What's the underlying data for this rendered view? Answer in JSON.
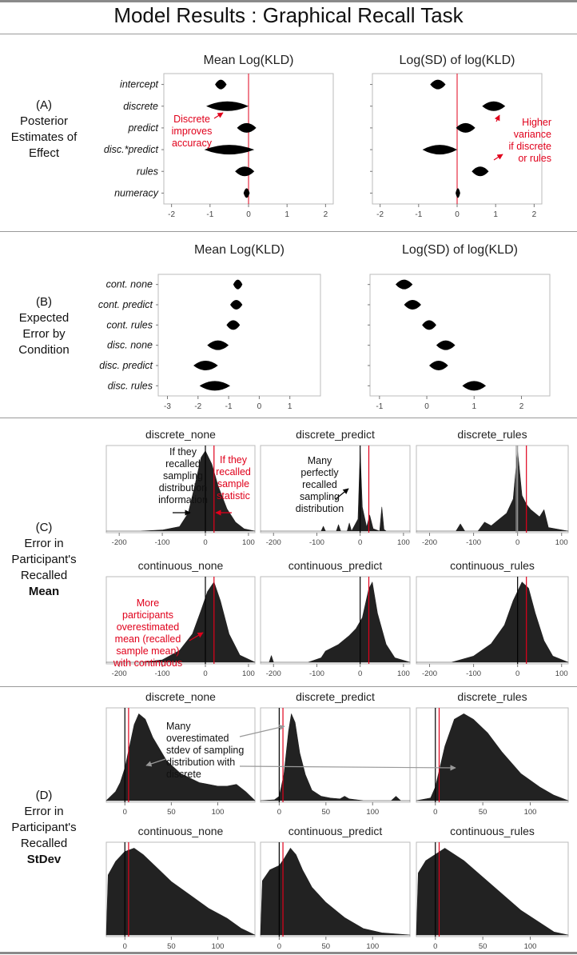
{
  "title": "Model Results : Graphical Recall Task",
  "colors": {
    "red": "#e0001b",
    "grey": "#999999",
    "fill": "#222222"
  },
  "sections": {
    "A": {
      "label_lines": [
        "(A)",
        "Posterior",
        "Estimates of",
        "Effect"
      ]
    },
    "B": {
      "label_lines": [
        "(B)",
        "Expected",
        "Error by",
        "Condition"
      ]
    },
    "C": {
      "label_lines": [
        "(C)",
        "Error in",
        "Participant's",
        "Recalled",
        "Mean"
      ]
    },
    "D": {
      "label_lines": [
        "(D)",
        "Error in",
        "Participant's",
        "Recalled",
        "StDev"
      ]
    }
  },
  "annotations": {
    "a_discrete": [
      "Discrete",
      "improves",
      "accuracy"
    ],
    "a_variance": [
      "Higher",
      "variance",
      "if discrete",
      "or rules"
    ],
    "c_sampling": [
      "If they",
      "recalled",
      "sampling",
      "distribution",
      "information"
    ],
    "c_sample": [
      "If they",
      "recalled",
      "sample",
      "statistic"
    ],
    "c_perfect": [
      "Many",
      "perfectly",
      "recalled",
      "sampling",
      "distribution"
    ],
    "c_more": [
      "More",
      "participants",
      "overestimated",
      "mean (recalled",
      "sample mean)",
      "with continuous"
    ],
    "d_many": [
      "Many",
      "overestimated",
      "stdev of sampling",
      "distribution with",
      "discrete"
    ]
  },
  "chart_data": [
    {
      "id": "A1",
      "type": "violin",
      "title": "Mean Log(KLD)",
      "categories": [
        "intercept",
        "discrete",
        "predict",
        "disc.*predict",
        "rules",
        "numeracy"
      ],
      "values": [
        -0.72,
        -0.55,
        -0.05,
        -0.5,
        -0.1,
        -0.05
      ],
      "spread": [
        0.15,
        0.55,
        0.25,
        0.65,
        0.25,
        0.08
      ],
      "xlim": [
        -2.2,
        2.2
      ],
      "xticks": [
        -2,
        -1,
        0,
        1,
        2
      ],
      "refline": 0
    },
    {
      "id": "A2",
      "type": "violin",
      "title": "Log(SD) of log(KLD)",
      "categories": [
        "intercept",
        "discrete",
        "predict",
        "disc.*predict",
        "rules",
        "numeracy"
      ],
      "values": [
        -0.5,
        0.95,
        0.22,
        -0.45,
        0.6,
        0.02
      ],
      "spread": [
        0.2,
        0.3,
        0.25,
        0.45,
        0.22,
        0.06
      ],
      "xlim": [
        -2.2,
        2.2
      ],
      "xticks": [
        -2,
        -1,
        0,
        1,
        2
      ],
      "refline": 0
    },
    {
      "id": "B1",
      "type": "violin",
      "title": "Mean Log(KLD)",
      "categories": [
        "cont. none",
        "cont. predict",
        "cont. rules",
        "disc. none",
        "disc. predict",
        "disc. rules"
      ],
      "values": [
        -0.7,
        -0.75,
        -0.85,
        -1.35,
        -1.75,
        -1.45
      ],
      "spread": [
        0.15,
        0.2,
        0.22,
        0.35,
        0.4,
        0.5
      ],
      "xlim": [
        -3.3,
        2.0
      ],
      "xticks": [
        -3,
        -2,
        -1,
        0,
        1
      ]
    },
    {
      "id": "B2",
      "type": "violin",
      "title": "Log(SD) of log(KLD)",
      "categories": [
        "cont. none",
        "cont. predict",
        "cont. rules",
        "disc. none",
        "disc. predict",
        "disc. rules"
      ],
      "values": [
        -0.48,
        -0.3,
        0.05,
        0.4,
        0.25,
        1.0
      ],
      "spread": [
        0.18,
        0.18,
        0.15,
        0.2,
        0.2,
        0.25
      ],
      "xlim": [
        -1.2,
        2.6
      ],
      "xticks": [
        -1,
        0,
        1,
        2
      ]
    },
    {
      "id": "C1",
      "type": "area",
      "title": "discrete_none",
      "xlim": [
        -230,
        115
      ],
      "xticks": [
        -200,
        -100,
        0,
        100
      ],
      "refs": [
        {
          "x": 0,
          "color": "#000000"
        },
        {
          "x": 20,
          "color": "#e0001b"
        }
      ],
      "x": [
        -230,
        -150,
        -100,
        -60,
        -40,
        -25,
        -10,
        0,
        15,
        30,
        50,
        70,
        90,
        115
      ],
      "y": [
        0,
        0,
        0.005,
        0.02,
        0.08,
        0.2,
        0.33,
        0.36,
        0.3,
        0.2,
        0.1,
        0.04,
        0.01,
        0
      ]
    },
    {
      "id": "C2",
      "type": "area",
      "title": "discrete_predict",
      "xlim": [
        -230,
        115
      ],
      "xticks": [
        -200,
        -100,
        0,
        100
      ],
      "refs": [
        {
          "x": 0,
          "color": "#000000"
        },
        {
          "x": 20,
          "color": "#e0001b"
        }
      ],
      "x": [
        -230,
        -90,
        -85,
        -80,
        -55,
        -50,
        -45,
        -30,
        -25,
        -20,
        -5,
        0,
        5,
        15,
        22,
        30,
        45,
        50,
        55,
        60,
        115
      ],
      "y": [
        0,
        0,
        0.06,
        0,
        0,
        0.08,
        0,
        0,
        0.1,
        0,
        0.15,
        1.0,
        0.3,
        0.05,
        0.2,
        0.03,
        0,
        0.3,
        0.02,
        0,
        0
      ]
    },
    {
      "id": "C3",
      "type": "area",
      "title": "discrete_rules",
      "xlim": [
        -230,
        115
      ],
      "xticks": [
        -200,
        -100,
        0,
        100
      ],
      "refs": [
        {
          "x": -3,
          "color": "#999999"
        },
        {
          "x": 0,
          "color": "#999999"
        },
        {
          "x": 20,
          "color": "#e0001b"
        }
      ],
      "x": [
        -230,
        -140,
        -130,
        -120,
        -90,
        -75,
        -60,
        -40,
        -25,
        -10,
        0,
        10,
        20,
        30,
        40,
        50,
        60,
        70,
        115
      ],
      "y": [
        0,
        0,
        0.04,
        0,
        0,
        0.05,
        0.03,
        0.07,
        0.1,
        0.18,
        0.45,
        0.2,
        0.15,
        0.12,
        0.1,
        0.08,
        0.12,
        0.02,
        0
      ]
    },
    {
      "id": "C4",
      "type": "area",
      "title": "continuous_none",
      "xlim": [
        -230,
        115
      ],
      "xticks": [
        -200,
        -100,
        0,
        100
      ],
      "refs": [
        {
          "x": 0,
          "color": "#000000"
        },
        {
          "x": 20,
          "color": "#e0001b"
        }
      ],
      "x": [
        -230,
        -150,
        -100,
        -60,
        -30,
        -10,
        5,
        20,
        35,
        55,
        80,
        115
      ],
      "y": [
        0,
        0,
        0.01,
        0.05,
        0.12,
        0.22,
        0.3,
        0.34,
        0.26,
        0.12,
        0.03,
        0
      ]
    },
    {
      "id": "C5",
      "type": "area",
      "title": "continuous_predict",
      "xlim": [
        -230,
        115
      ],
      "xticks": [
        -200,
        -100,
        0,
        100
      ],
      "refs": [
        {
          "x": 0,
          "color": "#000000"
        },
        {
          "x": 20,
          "color": "#e0001b"
        }
      ],
      "x": [
        -230,
        -210,
        -205,
        -200,
        -120,
        -90,
        -80,
        -50,
        -25,
        -10,
        5,
        20,
        28,
        40,
        60,
        80,
        115
      ],
      "y": [
        0,
        0,
        0.03,
        0,
        0,
        0.02,
        0.05,
        0.08,
        0.12,
        0.15,
        0.2,
        0.33,
        0.36,
        0.22,
        0.08,
        0.02,
        0
      ]
    },
    {
      "id": "C6",
      "type": "area",
      "title": "continuous_rules",
      "xlim": [
        -230,
        115
      ],
      "xticks": [
        -200,
        -100,
        0,
        100
      ],
      "refs": [
        {
          "x": 0,
          "color": "#000000"
        },
        {
          "x": 20,
          "color": "#e0001b"
        }
      ],
      "x": [
        -230,
        -200,
        -150,
        -100,
        -60,
        -30,
        -10,
        10,
        25,
        40,
        60,
        80,
        115
      ],
      "y": [
        0,
        0,
        0,
        0.02,
        0.06,
        0.12,
        0.2,
        0.26,
        0.24,
        0.16,
        0.07,
        0.02,
        0
      ]
    },
    {
      "id": "D1",
      "type": "area",
      "title": "discrete_none",
      "xlim": [
        -20,
        140
      ],
      "xticks": [
        0,
        50,
        100
      ],
      "refs": [
        {
          "x": 0,
          "color": "#000000"
        },
        {
          "x": 4,
          "color": "#e0001b"
        }
      ],
      "x": [
        -20,
        -10,
        -5,
        0,
        5,
        10,
        15,
        22,
        30,
        45,
        60,
        80,
        100,
        110,
        120,
        130,
        140
      ],
      "y": [
        0,
        0.05,
        0.1,
        0.18,
        0.3,
        0.42,
        0.48,
        0.45,
        0.35,
        0.22,
        0.15,
        0.1,
        0.08,
        0.08,
        0.09,
        0.05,
        0
      ]
    },
    {
      "id": "D2",
      "type": "area",
      "title": "discrete_predict",
      "xlim": [
        -20,
        140
      ],
      "xticks": [
        0,
        50,
        100
      ],
      "refs": [
        {
          "x": 0,
          "color": "#000000"
        },
        {
          "x": 4,
          "color": "#e0001b"
        }
      ],
      "x": [
        -20,
        -5,
        0,
        5,
        10,
        13,
        17,
        22,
        28,
        35,
        45,
        55,
        65,
        70,
        75,
        90,
        120,
        125,
        130,
        140
      ],
      "y": [
        0,
        0.01,
        0.05,
        0.3,
        0.8,
        1.0,
        0.9,
        0.55,
        0.3,
        0.12,
        0.05,
        0.03,
        0.02,
        0.05,
        0.02,
        0,
        0,
        0.05,
        0,
        0
      ]
    },
    {
      "id": "D3",
      "type": "area",
      "title": "discrete_rules",
      "xlim": [
        -20,
        140
      ],
      "xticks": [
        0,
        50,
        100
      ],
      "refs": [
        {
          "x": 0,
          "color": "#000000"
        },
        {
          "x": 4,
          "color": "#e0001b"
        }
      ],
      "x": [
        -20,
        -5,
        0,
        10,
        20,
        30,
        40,
        55,
        70,
        90,
        110,
        125,
        140
      ],
      "y": [
        0,
        0.01,
        0.05,
        0.2,
        0.3,
        0.32,
        0.3,
        0.25,
        0.18,
        0.1,
        0.05,
        0.02,
        0
      ]
    },
    {
      "id": "D4",
      "type": "area",
      "title": "continuous_none",
      "xlim": [
        -20,
        140
      ],
      "xticks": [
        0,
        50,
        100
      ],
      "refs": [
        {
          "x": 0,
          "color": "#000000"
        },
        {
          "x": 4,
          "color": "#e0001b"
        }
      ],
      "x": [
        -20,
        -18,
        -10,
        0,
        10,
        20,
        35,
        50,
        70,
        90,
        110,
        125,
        140
      ],
      "y": [
        0,
        0.18,
        0.22,
        0.25,
        0.26,
        0.24,
        0.2,
        0.16,
        0.12,
        0.08,
        0.05,
        0.02,
        0
      ]
    },
    {
      "id": "D5",
      "type": "area",
      "title": "continuous_predict",
      "xlim": [
        -20,
        140
      ],
      "xticks": [
        0,
        50,
        100
      ],
      "refs": [
        {
          "x": 0,
          "color": "#000000"
        },
        {
          "x": 4,
          "color": "#e0001b"
        }
      ],
      "x": [
        -20,
        -18,
        -10,
        0,
        5,
        12,
        18,
        25,
        35,
        50,
        70,
        90,
        110,
        140
      ],
      "y": [
        0,
        0.25,
        0.3,
        0.32,
        0.35,
        0.4,
        0.37,
        0.3,
        0.22,
        0.15,
        0.08,
        0.03,
        0.01,
        0
      ]
    },
    {
      "id": "D6",
      "type": "area",
      "title": "continuous_rules",
      "xlim": [
        -20,
        140
      ],
      "xticks": [
        0,
        50,
        100
      ],
      "refs": [
        {
          "x": 0,
          "color": "#000000"
        },
        {
          "x": 4,
          "color": "#e0001b"
        }
      ],
      "x": [
        -20,
        -18,
        -10,
        0,
        10,
        20,
        30,
        45,
        60,
        75,
        90,
        110,
        125,
        140
      ],
      "y": [
        0,
        0.2,
        0.24,
        0.26,
        0.28,
        0.26,
        0.24,
        0.2,
        0.16,
        0.12,
        0.08,
        0.04,
        0.01,
        0
      ]
    }
  ]
}
